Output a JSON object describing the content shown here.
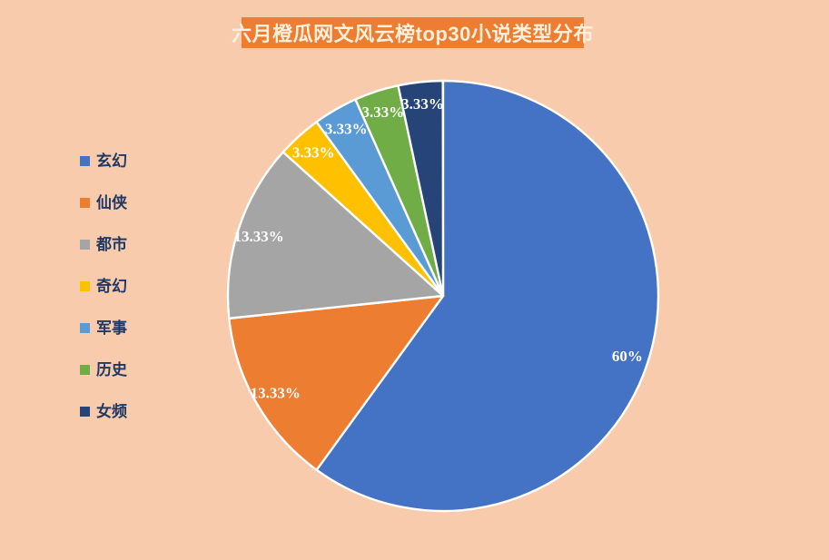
{
  "title": {
    "text": "六月橙瓜网文风云榜top30小说类型分布"
  },
  "colors": {
    "background": "#F8CBAD",
    "title_background": "#ED7D31",
    "title_text": "#FCEFDC",
    "legend_text": "#1F3864",
    "slice_border": "#FFFFFF",
    "label_text": "#FFFFFF"
  },
  "chart_data": {
    "type": "pie",
    "title": "六月橙瓜网文风云榜top30小说类型分布",
    "legend_position": "left",
    "start_angle_deg": 0,
    "direction": "clockwise",
    "slices": [
      {
        "name": "玄幻",
        "percent": 60,
        "label": "60%",
        "color": "#4472C4"
      },
      {
        "name": "仙侠",
        "percent": 13.33,
        "label": "13.33%",
        "color": "#ED7D31"
      },
      {
        "name": "都市",
        "percent": 13.33,
        "label": "13.33%",
        "color": "#A5A5A5"
      },
      {
        "name": "奇幻",
        "percent": 3.33,
        "label": "3.33%",
        "color": "#FFC000"
      },
      {
        "name": "军事",
        "percent": 3.33,
        "label": "3.33%",
        "color": "#5B9BD5"
      },
      {
        "name": "历史",
        "percent": 3.33,
        "label": "3.33%",
        "color": "#70AD47"
      },
      {
        "name": "女频",
        "percent": 3.33,
        "label": "3.33%",
        "color": "#264478"
      }
    ]
  }
}
